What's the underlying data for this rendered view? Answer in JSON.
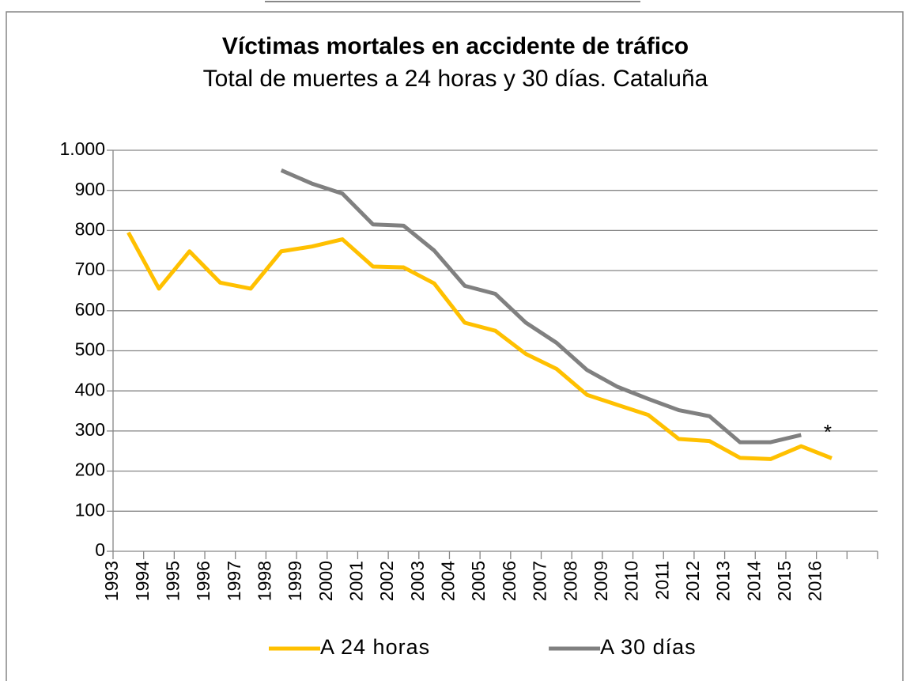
{
  "chart_data": {
    "type": "line",
    "title": "Víctimas mortales en accidente de tráfico",
    "subtitle": "Total de muertes a 24 horas y 30 días. Cataluña",
    "categories": [
      "1993",
      "1994",
      "1995",
      "1996",
      "1997",
      "1998",
      "1999",
      "2000",
      "2001",
      "2002",
      "2003",
      "2004",
      "2005",
      "2006",
      "2007",
      "2008",
      "2009",
      "2010",
      "2011",
      "2012",
      "2013",
      "2014",
      "2015",
      "2016",
      null
    ],
    "series": [
      {
        "name": "A 24 horas",
        "color": "#FFC000",
        "values": [
          795,
          655,
          748,
          670,
          655,
          748,
          760,
          778,
          710,
          708,
          668,
          570,
          550,
          492,
          455,
          390,
          365,
          340,
          280,
          275,
          233,
          230,
          262,
          232,
          null
        ]
      },
      {
        "name": "A 30 días",
        "color": "#808080",
        "values": [
          null,
          null,
          null,
          null,
          null,
          950,
          917,
          892,
          815,
          812,
          750,
          662,
          642,
          570,
          520,
          452,
          410,
          380,
          352,
          337,
          272,
          272,
          290,
          null,
          null
        ]
      }
    ],
    "annotation": "*",
    "ylim": [
      0,
      1000
    ],
    "yticks": [
      0,
      100,
      200,
      300,
      400,
      500,
      600,
      700,
      800,
      900,
      {
        "value": 1000,
        "label": "1.000"
      }
    ],
    "grid": true,
    "legend": "bottom"
  }
}
